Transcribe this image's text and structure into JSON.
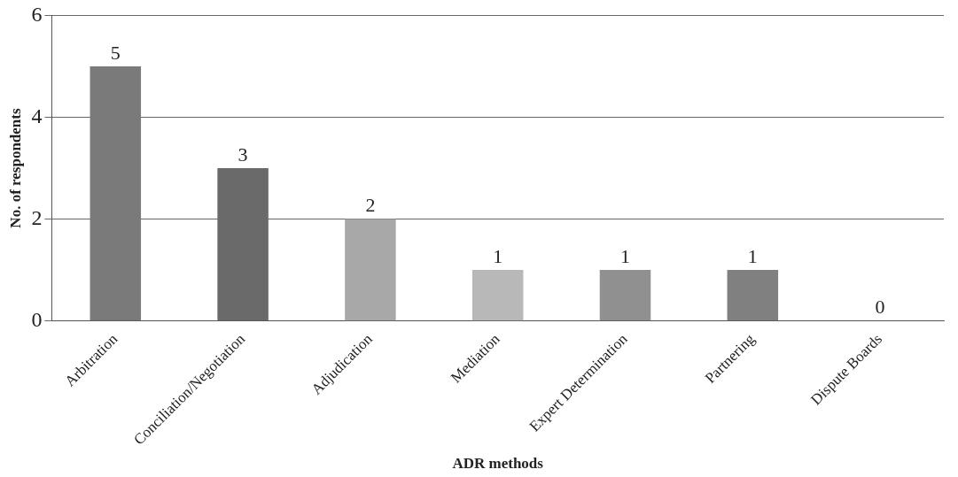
{
  "chart_data": {
    "type": "bar",
    "xlabel": "ADR methods",
    "ylabel": "No. of respondents",
    "categories": [
      "Arbitration",
      "Conciliation/Negotiation",
      "Adjudication",
      "Mediation",
      "Expert Determination",
      "Partnering",
      "Dispute Boards"
    ],
    "values": [
      5,
      3,
      2,
      1,
      1,
      1,
      0
    ],
    "colors": [
      "#7a7a7a",
      "#6a6a6a",
      "#a8a8a8",
      "#b8b8b8",
      "#909090",
      "#808080",
      "#808080"
    ],
    "ylim": [
      0,
      6
    ],
    "yticks": [
      0,
      2,
      4,
      6
    ],
    "grid": "y",
    "data_labels": true
  }
}
